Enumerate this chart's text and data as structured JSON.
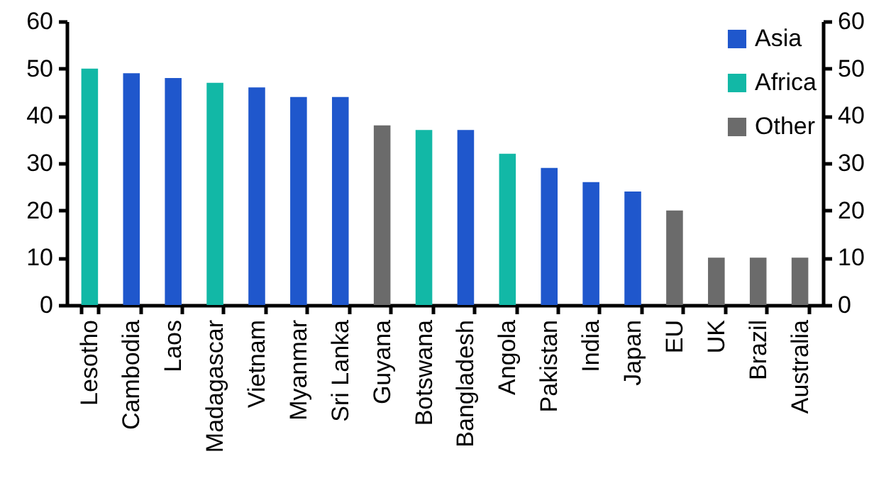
{
  "chart_data": {
    "type": "bar",
    "categories": [
      "Lesotho",
      "Cambodia",
      "Laos",
      "Madagascar",
      "Vietnam",
      "Myanmar",
      "Sri Lanka",
      "Guyana",
      "Botswana",
      "Bangladesh",
      "Angola",
      "Pakistan",
      "India",
      "Japan",
      "EU",
      "UK",
      "Brazil",
      "Australia"
    ],
    "series": [
      {
        "name": "Asia",
        "color": "#1f57cc",
        "values": [
          null,
          49,
          48,
          null,
          46,
          44,
          44,
          null,
          null,
          37,
          null,
          29,
          26,
          24,
          null,
          null,
          null,
          null
        ]
      },
      {
        "name": "Africa",
        "color": "#12b8a6",
        "values": [
          50,
          null,
          null,
          47,
          null,
          null,
          null,
          null,
          37,
          null,
          32,
          null,
          null,
          null,
          null,
          null,
          null,
          null
        ]
      },
      {
        "name": "Other",
        "color": "#6b6b6b",
        "values": [
          null,
          null,
          null,
          null,
          null,
          null,
          null,
          38,
          null,
          null,
          null,
          null,
          null,
          null,
          20,
          10,
          10,
          10
        ]
      }
    ],
    "ylim": [
      0,
      60
    ],
    "yticks": [
      0,
      10,
      20,
      30,
      40,
      50,
      60
    ],
    "y2lim": [
      0,
      60
    ],
    "y2ticks": [
      0,
      10,
      20,
      30,
      40,
      50,
      60
    ],
    "legend": "top right",
    "grid": false
  }
}
